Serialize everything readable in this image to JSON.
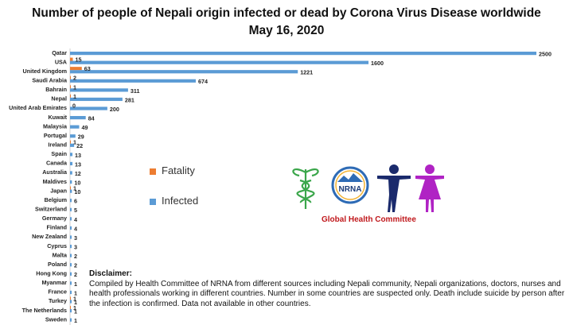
{
  "chart_data": {
    "type": "bar",
    "orientation": "horizontal",
    "title_line1": "Number of people of Nepali origin infected or dead by Corona Virus Disease worldwide",
    "title_line2": "May 16, 2020",
    "categories": [
      "Qatar",
      "USA",
      "United Kingdom",
      "Saudi Arabia",
      "Bahrain",
      "Nepal",
      "United Arab Emirates",
      "Kuwait",
      "Malaysia",
      "Portugal",
      "Ireland",
      "Spain",
      "Canada",
      "Australia",
      "Maldives",
      "Japan",
      "Belgium",
      "Switzerland",
      "Germany",
      "Finland",
      "New Zealand",
      "Cyprus",
      "Malta",
      "Poland",
      "Hong Kong",
      "Myanmar",
      "France",
      "Turkey",
      "The Netherlands",
      "Sweden"
    ],
    "series": [
      {
        "name": "Fatality",
        "color": "#ed7d31",
        "values": [
          0,
          15,
          63,
          2,
          1,
          1,
          0,
          0,
          0,
          0,
          1,
          0,
          0,
          0,
          0,
          1,
          0,
          0,
          0,
          0,
          0,
          0,
          0,
          0,
          0,
          0,
          0,
          1,
          1,
          0
        ],
        "labels": [
          "",
          "15",
          "63",
          "2",
          "1",
          "1",
          "0",
          "",
          "",
          "",
          "1",
          "",
          "",
          "",
          "",
          "1",
          "",
          "",
          "",
          "",
          "",
          "",
          "",
          "",
          "",
          "",
          "",
          "1",
          "1",
          ""
        ]
      },
      {
        "name": "Infected",
        "color": "#5b9bd5",
        "values": [
          2500,
          1600,
          1221,
          674,
          311,
          281,
          200,
          84,
          49,
          29,
          22,
          13,
          13,
          12,
          10,
          10,
          6,
          5,
          4,
          4,
          3,
          3,
          2,
          2,
          2,
          1,
          1,
          1,
          1,
          1
        ]
      }
    ],
    "xlim": [
      0,
      2500
    ],
    "legend_position": "center"
  },
  "legend": [
    {
      "label": "Fatality",
      "color": "#ed7d31"
    },
    {
      "label": "Infected",
      "color": "#5b9bd5"
    }
  ],
  "logo": {
    "text": "NRNA",
    "caption": "Global Health Committee"
  },
  "disclaimer": {
    "title": "Disclaimer:",
    "text": "Compiled by Health Committee of NRNA from different sources including Nepali community, Nepali organizations,  doctors, nurses and health professionals working in different countries. Number in some  countries are suspected only. Death include suicide by person after the infection is confirmed. Data not available in other countries."
  }
}
